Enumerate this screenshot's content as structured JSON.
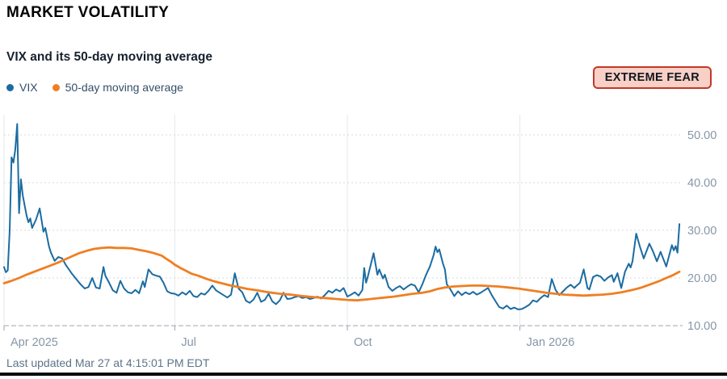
{
  "header": {
    "title": "MARKET VOLATILITY"
  },
  "chart": {
    "subtitle": "VIX and its 50-day moving average"
  },
  "legend": [
    {
      "label": "VIX",
      "color": "#1b6ca1"
    },
    {
      "label": "50-day moving average",
      "color": "#ef7f23"
    }
  ],
  "badge": {
    "label": "EXTREME FEAR",
    "bg": "#f9d0c6",
    "border": "#c0392b",
    "text_color": "#101820"
  },
  "footer": {
    "last_updated": "Last updated Mar 27 at 4:15:01 PM EDT"
  },
  "chart_data": {
    "type": "line",
    "title": "VIX and its 50-day moving average",
    "legend_position": "top-left",
    "grid": "horizontal-dashed, vertical-solid",
    "x_axis": {
      "unit": "days since 2025-04-01",
      "range": [
        0,
        362
      ],
      "ticks": [
        {
          "day": 0,
          "label": "Apr 2025"
        },
        {
          "day": 91,
          "label": "Jul"
        },
        {
          "day": 183,
          "label": "Oct"
        },
        {
          "day": 275,
          "label": "Jan 2026"
        }
      ]
    },
    "y_axis": {
      "range": [
        10,
        54
      ],
      "ticks": [
        {
          "value": 10,
          "label": "10.00"
        },
        {
          "value": 20,
          "label": "20.00"
        },
        {
          "value": 30,
          "label": "30.00"
        },
        {
          "value": 40,
          "label": "40.00"
        },
        {
          "value": 50,
          "label": "50.00"
        }
      ]
    },
    "series": [
      {
        "name": "VIX",
        "color": "#1b6ca1",
        "width": 2,
        "points": [
          [
            0,
            22.3
          ],
          [
            1,
            21.2
          ],
          [
            2,
            21.6
          ],
          [
            3,
            30
          ],
          [
            4,
            45.3
          ],
          [
            5,
            44.2
          ],
          [
            6,
            46.9
          ],
          [
            7,
            52.3
          ],
          [
            8,
            33.6
          ],
          [
            9,
            40.7
          ],
          [
            10,
            37.3
          ],
          [
            12,
            33.1
          ],
          [
            13,
            31.7
          ],
          [
            14,
            32.5
          ],
          [
            15,
            30.5
          ],
          [
            17,
            32.2
          ],
          [
            19,
            34.6
          ],
          [
            20,
            32.2
          ],
          [
            21,
            29.7
          ],
          [
            22,
            30.5
          ],
          [
            24,
            26.6
          ],
          [
            25,
            25.3
          ],
          [
            27,
            23.6
          ],
          [
            29,
            24.4
          ],
          [
            31,
            24.1
          ],
          [
            33,
            22.7
          ],
          [
            36,
            21
          ],
          [
            39,
            19.5
          ],
          [
            41,
            18.6
          ],
          [
            43,
            17.8
          ],
          [
            45,
            18.1
          ],
          [
            47,
            20
          ],
          [
            49,
            18
          ],
          [
            51,
            17.8
          ],
          [
            53,
            22.3
          ],
          [
            54,
            20.5
          ],
          [
            56,
            19
          ],
          [
            58,
            17.4
          ],
          [
            60,
            16.9
          ],
          [
            62,
            19.4
          ],
          [
            64,
            17.8
          ],
          [
            66,
            17
          ],
          [
            68,
            16.8
          ],
          [
            70,
            17.5
          ],
          [
            72,
            16.8
          ],
          [
            74,
            19.3
          ],
          [
            75,
            18.1
          ],
          [
            77,
            21.8
          ],
          [
            79,
            20.8
          ],
          [
            81,
            20.5
          ],
          [
            83,
            20.3
          ],
          [
            85,
            19
          ],
          [
            87,
            17.2
          ],
          [
            89,
            16.8
          ],
          [
            91,
            16.7
          ],
          [
            93,
            16.3
          ],
          [
            95,
            17
          ],
          [
            97,
            16.5
          ],
          [
            99,
            17.3
          ],
          [
            101,
            16.2
          ],
          [
            103,
            16
          ],
          [
            105,
            16.8
          ],
          [
            107,
            16.5
          ],
          [
            109,
            17.3
          ],
          [
            111,
            18.4
          ],
          [
            113,
            17.4
          ],
          [
            115,
            16.9
          ],
          [
            117,
            16.4
          ],
          [
            119,
            15.9
          ],
          [
            121,
            16.5
          ],
          [
            123,
            21
          ],
          [
            125,
            17.8
          ],
          [
            127,
            17
          ],
          [
            129,
            15.2
          ],
          [
            131,
            14.8
          ],
          [
            133,
            15.5
          ],
          [
            135,
            16.9
          ],
          [
            137,
            15
          ],
          [
            139,
            15.4
          ],
          [
            141,
            16.7
          ],
          [
            143,
            15.1
          ],
          [
            145,
            14.5
          ],
          [
            147,
            15.3
          ],
          [
            149,
            16.9
          ],
          [
            151,
            15.6
          ],
          [
            153,
            15.7
          ],
          [
            155,
            16
          ],
          [
            157,
            16.2
          ],
          [
            159,
            15.8
          ],
          [
            161,
            16
          ],
          [
            163,
            15.6
          ],
          [
            165,
            15.8
          ],
          [
            167,
            16.1
          ],
          [
            169,
            15.7
          ],
          [
            171,
            16.4
          ],
          [
            173,
            17.3
          ],
          [
            175,
            16.9
          ],
          [
            177,
            17.6
          ],
          [
            179,
            17.2
          ],
          [
            181,
            17.9
          ],
          [
            183,
            16.1
          ],
          [
            185,
            16.5
          ],
          [
            187,
            17
          ],
          [
            189,
            16.3
          ],
          [
            191,
            17.5
          ],
          [
            192,
            22.1
          ],
          [
            193,
            19
          ],
          [
            194,
            20.4
          ],
          [
            197,
            25.2
          ],
          [
            199,
            20.7
          ],
          [
            200,
            21.8
          ],
          [
            202,
            19.9
          ],
          [
            203,
            20.7
          ],
          [
            205,
            18.1
          ],
          [
            207,
            17.3
          ],
          [
            209,
            17.9
          ],
          [
            211,
            18.3
          ],
          [
            213,
            17.6
          ],
          [
            215,
            18.2
          ],
          [
            217,
            18.7
          ],
          [
            219,
            18.4
          ],
          [
            221,
            17
          ],
          [
            223,
            18.7
          ],
          [
            225,
            20.7
          ],
          [
            227,
            22.4
          ],
          [
            229,
            24.8
          ],
          [
            230,
            26.6
          ],
          [
            231,
            25.4
          ],
          [
            232,
            26
          ],
          [
            234,
            23
          ],
          [
            235,
            21.8
          ],
          [
            236,
            18.7
          ],
          [
            238,
            17.6
          ],
          [
            240,
            16.2
          ],
          [
            242,
            17.2
          ],
          [
            244,
            16.4
          ],
          [
            246,
            17
          ],
          [
            248,
            16.6
          ],
          [
            250,
            17.1
          ],
          [
            252,
            16.5
          ],
          [
            254,
            16.9
          ],
          [
            256,
            17.4
          ],
          [
            258,
            17.9
          ],
          [
            260,
            16.4
          ],
          [
            262,
            15.1
          ],
          [
            264,
            13.9
          ],
          [
            266,
            13.6
          ],
          [
            268,
            14.2
          ],
          [
            270,
            13.5
          ],
          [
            272,
            13.8
          ],
          [
            274,
            13.4
          ],
          [
            276,
            13.5
          ],
          [
            278,
            13.9
          ],
          [
            280,
            14.4
          ],
          [
            282,
            15.3
          ],
          [
            284,
            15
          ],
          [
            286,
            15.8
          ],
          [
            288,
            16.4
          ],
          [
            290,
            16
          ],
          [
            292,
            19.8
          ],
          [
            294,
            17.5
          ],
          [
            296,
            16.4
          ],
          [
            298,
            17.2
          ],
          [
            300,
            18
          ],
          [
            302,
            18.6
          ],
          [
            304,
            17.9
          ],
          [
            305,
            18.3
          ],
          [
            307,
            19
          ],
          [
            309,
            21.8
          ],
          [
            311,
            17.9
          ],
          [
            312,
            17.6
          ],
          [
            314,
            20.2
          ],
          [
            316,
            20.6
          ],
          [
            318,
            20.3
          ],
          [
            320,
            19.4
          ],
          [
            322,
            20.1
          ],
          [
            324,
            20.6
          ],
          [
            325,
            19.2
          ],
          [
            327,
            21
          ],
          [
            329,
            17.9
          ],
          [
            331,
            21.3
          ],
          [
            333,
            23
          ],
          [
            334,
            22.2
          ],
          [
            335,
            23.5
          ],
          [
            337,
            29.3
          ],
          [
            339,
            26.5
          ],
          [
            341,
            24.1
          ],
          [
            344,
            27.2
          ],
          [
            346,
            25.5
          ],
          [
            348,
            23.5
          ],
          [
            350,
            25.5
          ],
          [
            353,
            22.4
          ],
          [
            356,
            26.9
          ],
          [
            357,
            25.8
          ],
          [
            358,
            26.7
          ],
          [
            359,
            25.3
          ],
          [
            360,
            31.3
          ]
        ]
      },
      {
        "name": "50-day moving average",
        "color": "#ef7f23",
        "width": 2.8,
        "points": [
          [
            0,
            18.9
          ],
          [
            4,
            19.4
          ],
          [
            8,
            20
          ],
          [
            12,
            20.7
          ],
          [
            16,
            21.3
          ],
          [
            20,
            21.9
          ],
          [
            24,
            22.5
          ],
          [
            28,
            23.1
          ],
          [
            32,
            23.8
          ],
          [
            36,
            24.5
          ],
          [
            40,
            25.2
          ],
          [
            44,
            25.7
          ],
          [
            48,
            26.1
          ],
          [
            52,
            26.3
          ],
          [
            56,
            26.4
          ],
          [
            60,
            26.3
          ],
          [
            64,
            26.3
          ],
          [
            68,
            26.2
          ],
          [
            72,
            25.9
          ],
          [
            76,
            25.6
          ],
          [
            80,
            25.2
          ],
          [
            84,
            24.7
          ],
          [
            87,
            23.9
          ],
          [
            89,
            23.4
          ],
          [
            91,
            22.8
          ],
          [
            94,
            22.1
          ],
          [
            97,
            21.5
          ],
          [
            100,
            20.9
          ],
          [
            104,
            20.4
          ],
          [
            108,
            19.8
          ],
          [
            112,
            19.3
          ],
          [
            116,
            18.9
          ],
          [
            120,
            18.5
          ],
          [
            125,
            18.1
          ],
          [
            130,
            17.7
          ],
          [
            135,
            17.4
          ],
          [
            141,
            17
          ],
          [
            147,
            16.7
          ],
          [
            153,
            16.5
          ],
          [
            159,
            16.2
          ],
          [
            165,
            16
          ],
          [
            171,
            15.8
          ],
          [
            177,
            15.6
          ],
          [
            183,
            15.4
          ],
          [
            188,
            15.3
          ],
          [
            193,
            15.5
          ],
          [
            198,
            15.7
          ],
          [
            203,
            15.9
          ],
          [
            208,
            16.1
          ],
          [
            213,
            16.4
          ],
          [
            218,
            16.7
          ],
          [
            223,
            16.9
          ],
          [
            227,
            17.2
          ],
          [
            231,
            17.7
          ],
          [
            235,
            18
          ],
          [
            239,
            18.2
          ],
          [
            244,
            18.3
          ],
          [
            249,
            18.4
          ],
          [
            254,
            18.4
          ],
          [
            259,
            18.3
          ],
          [
            264,
            18.2
          ],
          [
            269,
            18
          ],
          [
            274,
            17.8
          ],
          [
            279,
            17.5
          ],
          [
            284,
            17.2
          ],
          [
            289,
            16.9
          ],
          [
            294,
            16.7
          ],
          [
            299,
            16.5
          ],
          [
            304,
            16.4
          ],
          [
            309,
            16.3
          ],
          [
            314,
            16.4
          ],
          [
            319,
            16.5
          ],
          [
            324,
            16.7
          ],
          [
            329,
            17
          ],
          [
            334,
            17.4
          ],
          [
            339,
            17.9
          ],
          [
            344,
            18.6
          ],
          [
            349,
            19.3
          ],
          [
            353,
            20
          ],
          [
            356,
            20.5
          ],
          [
            358,
            20.9
          ],
          [
            360,
            21.3
          ]
        ]
      }
    ]
  }
}
